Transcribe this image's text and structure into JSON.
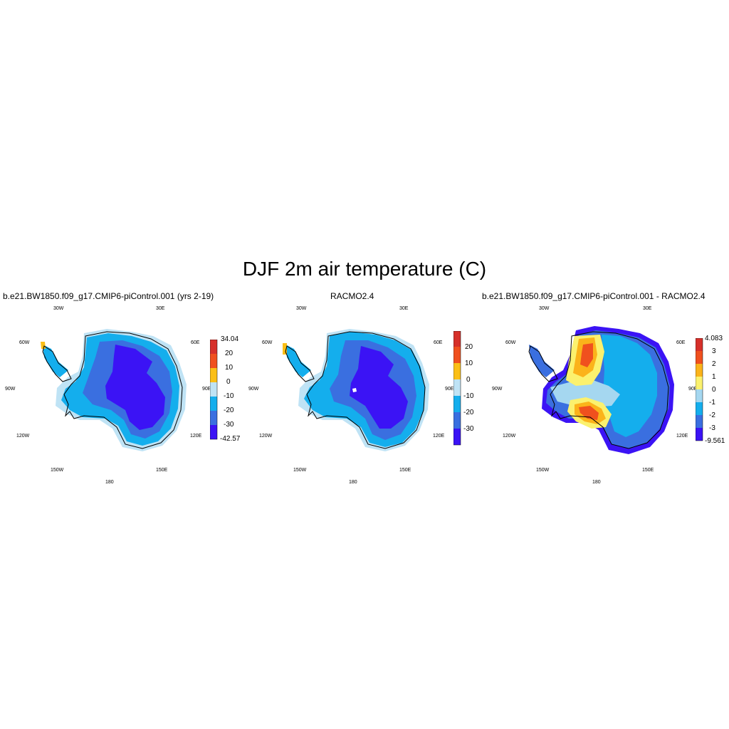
{
  "title": "DJF 2m air temperature (C)",
  "colors": {
    "coast": "#000000",
    "temp_scale": [
      "#3b13f5",
      "#3a6fe0",
      "#14aeed",
      "#bfe3f5",
      "#fbbf16",
      "#f0501e",
      "#d6302a"
    ],
    "diff_scale": [
      "#3b13f5",
      "#3a6fe0",
      "#14aeed",
      "#a5d7f0",
      "#fbf16e",
      "#fbb31a",
      "#f0501e",
      "#d6302a"
    ]
  },
  "panels": [
    {
      "title": "b.e21.BW1850.f09_g17.CMIP6-piControl.001 (yrs 2-19)",
      "lon_labels": {
        "n_left": "30W",
        "n_right": "30E",
        "w_top": "60W",
        "w_mid": "90W",
        "w_bot": "120W",
        "e_top": "60E",
        "e_mid": "90E",
        "e_bot": "120E",
        "s_left": "150W",
        "s_right": "150E",
        "s": "180"
      },
      "colorbar": {
        "labels": [
          "34.04",
          "20",
          "10",
          "0",
          "-10",
          "-20",
          "-30",
          "-42.57"
        ]
      }
    },
    {
      "title": "RACMO2.4",
      "lon_labels": {
        "n_left": "30W",
        "n_right": "30E",
        "w_top": "60W",
        "w_mid": "90W",
        "w_bot": "120W",
        "e_top": "60E",
        "e_mid": "90E",
        "e_bot": "120E",
        "s_left": "150W",
        "s_right": "150E",
        "s": "180"
      },
      "colorbar": {
        "labels": [
          "20",
          "10",
          "0",
          "-10",
          "-20",
          "-30"
        ]
      }
    },
    {
      "title": "b.e21.BW1850.f09_g17.CMIP6-piControl.001 - RACMO2.4",
      "lon_labels": {
        "n_left": "30W",
        "n_right": "30E",
        "w_top": "60W",
        "w_mid": "90W",
        "w_bot": "120W",
        "e_top": "60E",
        "e_mid": "90E",
        "e_bot": "120E",
        "s_left": "150W",
        "s_right": "150E",
        "s": "180"
      },
      "colorbar": {
        "labels": [
          "4.083",
          "3",
          "2",
          "1",
          "0",
          "-1",
          "-2",
          "-3",
          "-9.561"
        ]
      }
    }
  ]
}
